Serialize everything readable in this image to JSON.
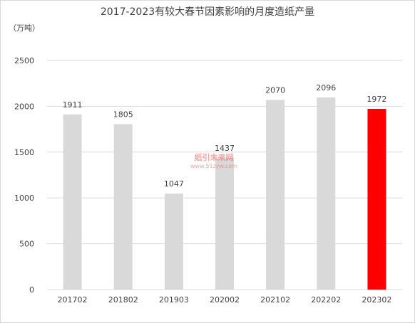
{
  "chart_data": {
    "type": "bar",
    "title": "2017-2023有较大春节因素影响的月度造纸产量",
    "unit_label": "（万吨）",
    "categories": [
      "201702",
      "201802",
      "201903",
      "202002",
      "202102",
      "202202",
      "202302"
    ],
    "values": [
      1911,
      1805,
      1047,
      1437,
      2070,
      2096,
      1972
    ],
    "ylim": [
      0,
      2500
    ],
    "yticks": [
      0,
      500,
      1000,
      1500,
      2000,
      2500
    ],
    "grid": true,
    "legend": "none",
    "colors": {
      "bar": "#d9d9d9",
      "highlight": "#ff0000",
      "grid": "#d9d9d9"
    },
    "highlight_index": 6
  },
  "watermark": {
    "brand": "纸引未来网",
    "url": "www.51zyw.com"
  }
}
